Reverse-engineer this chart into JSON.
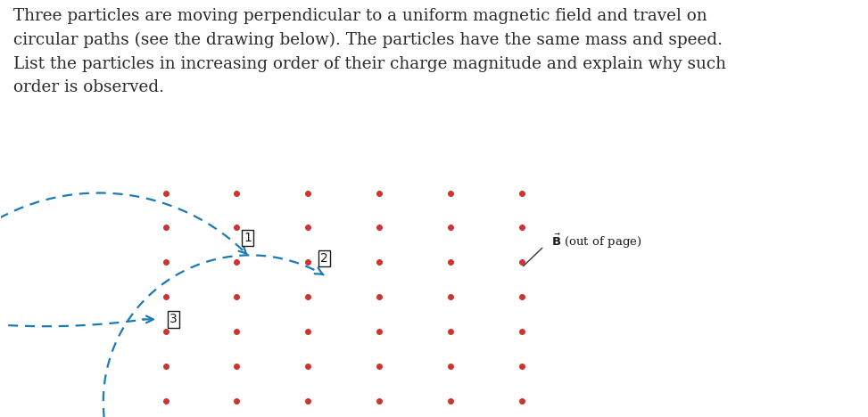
{
  "text_paragraph": "Three particles are moving perpendicular to a uniform magnetic field and travel on\ncircular paths (see the drawing below). The particles have the same mass and speed.\nList the particles in increasing order of their charge magnitude and explain why such\norder is observed.",
  "text_color": "#2b2b2b",
  "text_fontsize": 13.2,
  "bg_color": "#ffffff",
  "dot_color": "#cc3333",
  "curve_color": "#1a7ab5",
  "label_color": "#1a1a1a",
  "dot_rows": 7,
  "dot_cols": 6
}
